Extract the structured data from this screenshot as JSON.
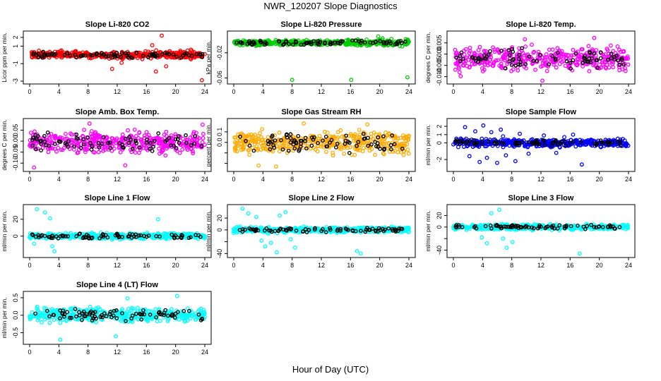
{
  "title": "NWR_120207  Slope Diagnostics",
  "xlabel": "Hour of Day (UTC)",
  "chart_data": [
    {
      "type": "scatter",
      "title": "Slope Li-820 CO2",
      "ylabel": "Licor ppm per min.",
      "xlim": [
        0,
        24
      ],
      "xticks": [
        0,
        4,
        8,
        12,
        16,
        20,
        24
      ],
      "ylim": [
        -3,
        2.4
      ],
      "yticks": [
        -3,
        -1,
        1,
        2
      ],
      "ytick_labels": [
        "-3",
        "-1",
        "1",
        "2"
      ],
      "color": "#ff0000",
      "center": 0,
      "spread": 0.35,
      "outliers": [
        [
          11.3,
          -1.6
        ],
        [
          12.6,
          -0.9
        ],
        [
          16.8,
          1.1
        ],
        [
          17.3,
          -1.9
        ],
        [
          18.1,
          2.2
        ],
        [
          18.7,
          -1.3
        ],
        [
          22.1,
          0.6
        ],
        [
          23.6,
          -2.9
        ]
      ]
    },
    {
      "type": "scatter",
      "title": "Slope Li-820 Pressure",
      "ylabel": "kPa per min.",
      "xlim": [
        0,
        24
      ],
      "xticks": [
        0,
        4,
        8,
        12,
        16,
        20,
        24
      ],
      "ylim": [
        -0.065,
        0.01
      ],
      "yticks": [
        -0.06,
        -0.02
      ],
      "ytick_labels": [
        "-0.06",
        "-0.02"
      ],
      "color": "#00cc00",
      "center": -0.004,
      "spread": 0.004,
      "outliers": [
        [
          8.0,
          -0.063
        ],
        [
          16.1,
          -0.063
        ],
        [
          23.8,
          -0.059
        ],
        [
          19.8,
          0.006
        ],
        [
          20.4,
          0.003
        ],
        [
          21.6,
          0.002
        ],
        [
          18.2,
          0.001
        ]
      ]
    },
    {
      "type": "scatter",
      "title": "Slope Li-820 Temp.",
      "ylabel": "degrees C per min.",
      "xlim": [
        0,
        24
      ],
      "xticks": [
        0,
        4,
        8,
        12,
        16,
        20,
        24
      ],
      "ylim": [
        -0.012,
        0.009
      ],
      "yticks": [
        -0.01,
        -0.005,
        0.0,
        0.005
      ],
      "ytick_labels": [
        "-0.010",
        "-0.005",
        "0.000",
        "0.005"
      ],
      "color": "#ff00ff",
      "center": -0.002,
      "spread": 0.0045,
      "outliers": [
        [
          12.2,
          -0.0118
        ],
        [
          19.3,
          0.0072
        ],
        [
          9.8,
          0.0066
        ],
        [
          1.0,
          -0.0098
        ]
      ]
    },
    {
      "type": "scatter",
      "title": "Slope Amb. Box Temp.",
      "ylabel": "degrees C per min.",
      "xlim": [
        0,
        24
      ],
      "xticks": [
        0,
        4,
        8,
        12,
        16,
        20,
        24
      ],
      "ylim": [
        -0.125,
        0.09
      ],
      "yticks": [
        -0.1,
        -0.05,
        0.0,
        0.05
      ],
      "ytick_labels": [
        "-0.10",
        "-0.05",
        "0.00",
        "0.05"
      ],
      "color": "#ff00ff",
      "center": -0.005,
      "spread": 0.045,
      "outliers": [
        [
          0.6,
          -0.12
        ],
        [
          8.2,
          0.08
        ],
        [
          13.1,
          -0.11
        ],
        [
          23.7,
          0.075
        ]
      ]
    },
    {
      "type": "scatter",
      "title": "Slope Gas Stream RH",
      "ylabel": "percent per min.",
      "xlim": [
        0,
        24
      ],
      "xticks": [
        0,
        4,
        8,
        12,
        16,
        20,
        24
      ],
      "ylim": [
        -0.25,
        0.2
      ],
      "yticks": [
        -0.2,
        -0.1,
        0.0,
        0.1
      ],
      "ytick_labels": [
        "",
        "",
        "0.0",
        "0.1"
      ],
      "color": "#ffaa00",
      "center": 0,
      "spread": 0.095,
      "outliers": [
        [
          3.4,
          -0.22
        ],
        [
          9.6,
          0.18
        ],
        [
          18.3,
          0.17
        ],
        [
          5.8,
          -0.23
        ]
      ]
    },
    {
      "type": "scatter",
      "title": "Slope Sample Flow",
      "ylabel": "ml/min per min.",
      "xlim": [
        0,
        24
      ],
      "xticks": [
        0,
        4,
        8,
        12,
        16,
        20,
        24
      ],
      "ylim": [
        -3.1,
        2.6
      ],
      "yticks": [
        -2,
        0,
        1,
        2
      ],
      "ytick_labels": [
        "-2",
        "0",
        "1",
        "2"
      ],
      "color": "#0000ff",
      "center": 0,
      "spread": 0.4,
      "outliers": [
        [
          1.6,
          1.9
        ],
        [
          2.2,
          -1.6
        ],
        [
          3.0,
          1.4
        ],
        [
          3.6,
          -2.3
        ],
        [
          4.1,
          2.1
        ],
        [
          4.6,
          -1.8
        ],
        [
          5.2,
          1.3
        ],
        [
          6.0,
          -2.4
        ],
        [
          6.8,
          0.8
        ],
        [
          7.2,
          -1.5
        ],
        [
          8.5,
          -2.2
        ],
        [
          9.1,
          1.1
        ],
        [
          10.3,
          -1.3
        ],
        [
          12.4,
          0.9
        ],
        [
          14.1,
          -1.2
        ],
        [
          15.2,
          0.7
        ],
        [
          16.4,
          1.0
        ],
        [
          17.6,
          -2.6
        ],
        [
          6.5,
          1.6
        ]
      ]
    },
    {
      "type": "scatter",
      "title": "Slope Line 1 Flow",
      "ylabel": "ml/min per min.",
      "xlim": [
        0,
        24
      ],
      "xticks": [
        0,
        4,
        8,
        12,
        16,
        20,
        24
      ],
      "ylim": [
        -22,
        34
      ],
      "yticks": [
        0,
        20
      ],
      "ytick_labels": [
        "0",
        "20"
      ],
      "color": "#00ffff",
      "center": 0,
      "spread": 3,
      "outliers": [
        [
          1.0,
          32
        ],
        [
          2.1,
          28
        ],
        [
          2.8,
          21
        ],
        [
          3.1,
          -12
        ],
        [
          3.4,
          -18
        ],
        [
          0.6,
          -9
        ],
        [
          17.6,
          20
        ]
      ]
    },
    {
      "type": "scatter",
      "title": "Slope Line 2 Flow",
      "ylabel": "ml/min per min.",
      "xlim": [
        0,
        24
      ],
      "xticks": [
        0,
        4,
        8,
        12,
        16,
        20,
        24
      ],
      "ylim": [
        -42,
        38
      ],
      "yticks": [
        -40,
        -20,
        0,
        20
      ],
      "ytick_labels": [
        "-40",
        "",
        "0",
        "20"
      ],
      "color": "#00ffff",
      "center": 0,
      "spread": 4,
      "outliers": [
        [
          1.2,
          36
        ],
        [
          2.0,
          28
        ],
        [
          3.1,
          22
        ],
        [
          3.8,
          -18
        ],
        [
          4.3,
          -28
        ],
        [
          5.1,
          -22
        ],
        [
          5.9,
          -38
        ],
        [
          6.3,
          24
        ],
        [
          7.1,
          30
        ],
        [
          7.8,
          -16
        ],
        [
          8.4,
          -30
        ],
        [
          16.9,
          -36
        ],
        [
          17.4,
          -40
        ]
      ]
    },
    {
      "type": "scatter",
      "title": "Slope Line 3 Flow",
      "ylabel": "ml/min per min.",
      "xlim": [
        0,
        24
      ],
      "xticks": [
        0,
        4,
        8,
        12,
        16,
        20,
        24
      ],
      "ylim": [
        -48,
        34
      ],
      "yticks": [
        -40,
        -20,
        0,
        20
      ],
      "ytick_labels": [
        "-40",
        "",
        "0",
        "20"
      ],
      "color": "#00ffff",
      "center": 0,
      "spread": 4,
      "outliers": [
        [
          3.9,
          -18
        ],
        [
          4.6,
          -28
        ],
        [
          5.2,
          24
        ],
        [
          6.3,
          30
        ],
        [
          6.8,
          -20
        ],
        [
          7.3,
          -36
        ],
        [
          8.1,
          -26
        ],
        [
          17.3,
          -46
        ]
      ]
    },
    {
      "type": "scatter",
      "title": "Slope Line 4 (LT) Flow",
      "ylabel": "ml/min per min.",
      "xlim": [
        0,
        24
      ],
      "xticks": [
        0,
        4,
        8,
        12,
        16,
        20,
        24
      ],
      "ylim": [
        -0.75,
        0.6
      ],
      "yticks": [
        -0.5,
        0.0,
        0.5
      ],
      "ytick_labels": [
        "-0.5",
        "0.0",
        "0.5"
      ],
      "color": "#00ffff",
      "center": 0,
      "spread": 0.18,
      "outliers": [
        [
          4.2,
          -0.7
        ],
        [
          11.8,
          -0.6
        ],
        [
          13.4,
          0.48
        ],
        [
          20.2,
          0.55
        ]
      ]
    }
  ]
}
